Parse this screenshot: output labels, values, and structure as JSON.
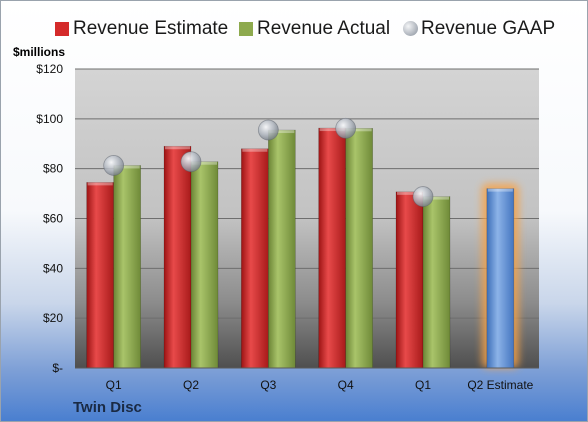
{
  "chart_data": {
    "type": "bar",
    "title": "",
    "ylabel": "$millions",
    "company": "Twin Disc",
    "categories": [
      "Q1",
      "Q2",
      "Q3",
      "Q4",
      "Q1",
      "Q2 Estimate"
    ],
    "series": [
      {
        "name": "Revenue Estimate",
        "kind": "bar",
        "color": "#d42a2a",
        "values": [
          74.5,
          89,
          88,
          96.3,
          70.7,
          null
        ]
      },
      {
        "name": "Revenue Actual",
        "kind": "bar",
        "color": "#8eaa4e",
        "values": [
          81.3,
          82.8,
          95.5,
          96.2,
          68.8,
          null
        ]
      },
      {
        "name": "Revenue GAAP",
        "kind": "marker",
        "color": "#b9bec6",
        "values": [
          81.3,
          82.8,
          95.5,
          96.2,
          68.8,
          null
        ]
      },
      {
        "name": "Q2 Estimate",
        "kind": "bar",
        "color": "#5b8fd4",
        "glow": "#f6a34a",
        "values": [
          null,
          null,
          null,
          null,
          null,
          72
        ]
      }
    ],
    "ylim": [
      0,
      120
    ],
    "yticks": [
      0,
      20,
      40,
      60,
      80,
      100,
      120
    ],
    "ytick_labels": [
      "$-",
      "$20",
      "$40",
      "$60",
      "$80",
      "$100",
      "$120"
    ],
    "grid": true,
    "legend_position": "top"
  }
}
